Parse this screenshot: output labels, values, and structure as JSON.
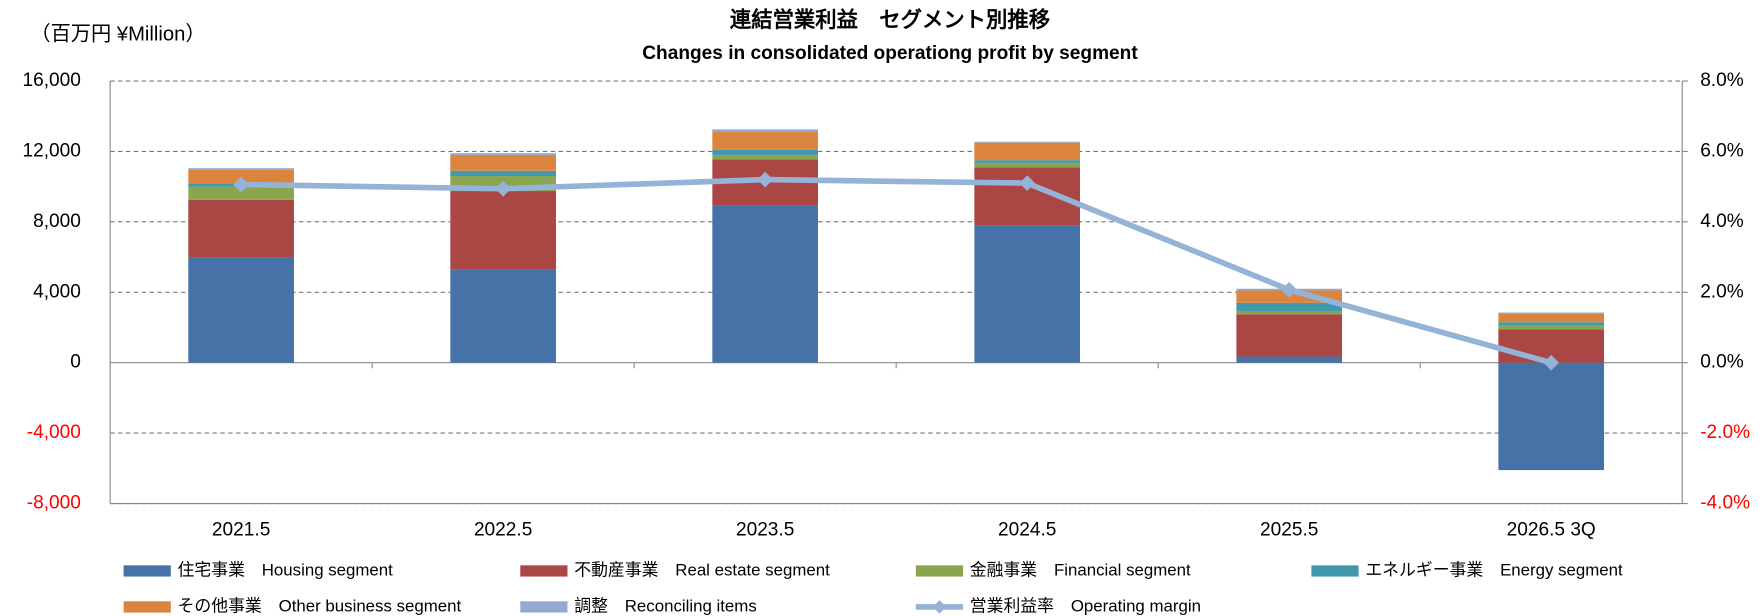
{
  "chart_data": {
    "type": "bar",
    "title": "連結営業利益　セグメント別推移",
    "subtitle": "Changes in consolidated operationg profit by segment",
    "unit_label": "（百万円 ¥Million）",
    "stacked": true,
    "grid": true,
    "negative_tick_color": "#ff0000",
    "categories": [
      "2021.5",
      "2022.5",
      "2023.5",
      "2024.5",
      "2025.5",
      "2026.5 3Q"
    ],
    "series": [
      {
        "name": "住宅事業　Housing segment",
        "color": "#4572a7",
        "values": [
          6000,
          5300,
          8950,
          7800,
          350,
          -6100
        ]
      },
      {
        "name": "不動産事業　Real estate segment",
        "color": "#aa4643",
        "values": [
          3250,
          4450,
          2600,
          3300,
          2400,
          1900
        ]
      },
      {
        "name": "金融事業　Financial segment",
        "color": "#89a54e",
        "values": [
          750,
          850,
          250,
          250,
          150,
          200
        ]
      },
      {
        "name": "エネルギー事業　Energy segment",
        "color": "#4198af",
        "values": [
          150,
          300,
          300,
          150,
          500,
          200
        ]
      },
      {
        "name": "その他事業　Other business segment",
        "color": "#db843d",
        "values": [
          800,
          900,
          1000,
          1000,
          700,
          500
        ]
      },
      {
        "name": "調整　Reconciling items",
        "color": "#93a9cf",
        "values": [
          100,
          100,
          150,
          50,
          100,
          50
        ]
      },
      {
        "name": "営業利益率　Operating margin",
        "type": "line",
        "axis": "y2",
        "color": "#95b3d7",
        "values": [
          5.06,
          4.94,
          5.2,
          5.1,
          2.07,
          0
        ]
      }
    ],
    "ylim": [
      -8000,
      16000
    ],
    "yticks": [
      {
        "value": -8000,
        "label": "-8,000"
      },
      {
        "value": -4000,
        "label": "-4,000"
      },
      0,
      {
        "value": 4000,
        "label": "4,000"
      },
      {
        "value": 8000,
        "label": "8,000"
      },
      {
        "value": 12000,
        "label": "12,000"
      },
      {
        "value": 16000,
        "label": "16,000"
      }
    ],
    "y2lim": [
      -4,
      8
    ],
    "y2ticks": [
      {
        "value": -4,
        "label": "-4.0%"
      },
      {
        "value": -2,
        "label": "-2.0%"
      },
      {
        "value": 0,
        "label": "0.0%"
      },
      {
        "value": 2,
        "label": "2.0%"
      },
      {
        "value": 4,
        "label": "4.0%"
      },
      {
        "value": 6,
        "label": "6.0%"
      },
      {
        "value": 8,
        "label": "8.0%"
      }
    ]
  }
}
